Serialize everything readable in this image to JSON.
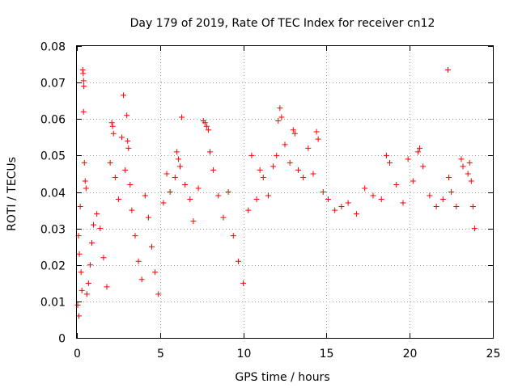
{
  "chart_data": {
    "type": "scatter",
    "title": "Day 179 of 2019, Rate Of TEC Index for receiver cn12",
    "xlabel": "GPS time / hours",
    "ylabel": "ROTI / TECUs",
    "xlim": [
      0,
      25
    ],
    "ylim": [
      0,
      0.08
    ],
    "xticks": [
      0,
      5,
      10,
      15,
      20,
      25
    ],
    "xtick_labels": [
      "0",
      "5",
      "10",
      "15",
      "20",
      "25"
    ],
    "yticks": [
      0,
      0.01,
      0.02,
      0.03,
      0.04,
      0.05,
      0.06,
      0.07,
      0.08
    ],
    "ytick_labels": [
      "0",
      "0.01",
      "0.02",
      "0.03",
      "0.04",
      "0.05",
      "0.06",
      "0.07",
      "0.08"
    ],
    "grid": true,
    "marker": "+",
    "series_color": "#ff0000",
    "series": [
      {
        "name": "ROTI",
        "points": [
          [
            0.35,
            0.0735
          ],
          [
            0.38,
            0.0725
          ],
          [
            0.4,
            0.0705
          ],
          [
            0.42,
            0.069
          ],
          [
            0.4,
            0.062
          ],
          [
            0.45,
            0.048
          ],
          [
            0.5,
            0.043
          ],
          [
            0.55,
            0.041
          ],
          [
            0.2,
            0.036
          ],
          [
            0.1,
            0.028
          ],
          [
            0.15,
            0.023
          ],
          [
            0.25,
            0.018
          ],
          [
            0.3,
            0.013
          ],
          [
            0.05,
            0.009
          ],
          [
            0.12,
            0.006
          ],
          [
            0.6,
            0.012
          ],
          [
            0.7,
            0.015
          ],
          [
            0.8,
            0.02
          ],
          [
            0.9,
            0.026
          ],
          [
            1.0,
            0.031
          ],
          [
            1.2,
            0.034
          ],
          [
            1.4,
            0.03
          ],
          [
            1.6,
            0.022
          ],
          [
            1.8,
            0.014
          ],
          [
            2.0,
            0.048
          ],
          [
            2.1,
            0.059
          ],
          [
            2.15,
            0.058
          ],
          [
            2.2,
            0.056
          ],
          [
            2.3,
            0.044
          ],
          [
            2.5,
            0.038
          ],
          [
            2.7,
            0.055
          ],
          [
            2.8,
            0.0665
          ],
          [
            2.9,
            0.046
          ],
          [
            3.0,
            0.061
          ],
          [
            3.05,
            0.054
          ],
          [
            3.1,
            0.052
          ],
          [
            3.2,
            0.042
          ],
          [
            3.3,
            0.035
          ],
          [
            3.5,
            0.028
          ],
          [
            3.7,
            0.021
          ],
          [
            3.9,
            0.016
          ],
          [
            4.1,
            0.039
          ],
          [
            4.3,
            0.033
          ],
          [
            4.5,
            0.025
          ],
          [
            4.7,
            0.018
          ],
          [
            4.9,
            0.012
          ],
          [
            5.2,
            0.037
          ],
          [
            5.4,
            0.045
          ],
          [
            5.6,
            0.04
          ],
          [
            5.9,
            0.044
          ],
          [
            6.0,
            0.051
          ],
          [
            6.1,
            0.049
          ],
          [
            6.2,
            0.047
          ],
          [
            6.3,
            0.0605
          ],
          [
            6.5,
            0.042
          ],
          [
            6.8,
            0.038
          ],
          [
            7.0,
            0.032
          ],
          [
            7.3,
            0.041
          ],
          [
            7.6,
            0.0595
          ],
          [
            7.7,
            0.059
          ],
          [
            7.8,
            0.058
          ],
          [
            7.9,
            0.057
          ],
          [
            8.0,
            0.051
          ],
          [
            8.2,
            0.046
          ],
          [
            8.5,
            0.039
          ],
          [
            8.8,
            0.033
          ],
          [
            9.1,
            0.04
          ],
          [
            9.4,
            0.028
          ],
          [
            9.7,
            0.021
          ],
          [
            10.0,
            0.015
          ],
          [
            10.3,
            0.035
          ],
          [
            10.5,
            0.05
          ],
          [
            10.8,
            0.038
          ],
          [
            11.0,
            0.046
          ],
          [
            11.2,
            0.044
          ],
          [
            11.5,
            0.039
          ],
          [
            11.8,
            0.047
          ],
          [
            12.0,
            0.05
          ],
          [
            12.1,
            0.0595
          ],
          [
            12.2,
            0.063
          ],
          [
            12.3,
            0.0605
          ],
          [
            12.5,
            0.053
          ],
          [
            12.8,
            0.048
          ],
          [
            13.0,
            0.057
          ],
          [
            13.1,
            0.056
          ],
          [
            13.3,
            0.046
          ],
          [
            13.6,
            0.044
          ],
          [
            13.9,
            0.052
          ],
          [
            14.2,
            0.045
          ],
          [
            14.4,
            0.0565
          ],
          [
            14.5,
            0.0545
          ],
          [
            14.8,
            0.04
          ],
          [
            15.1,
            0.038
          ],
          [
            15.5,
            0.035
          ],
          [
            15.9,
            0.036
          ],
          [
            16.3,
            0.037
          ],
          [
            16.8,
            0.034
          ],
          [
            17.3,
            0.041
          ],
          [
            17.8,
            0.039
          ],
          [
            18.3,
            0.038
          ],
          [
            18.6,
            0.05
          ],
          [
            18.8,
            0.048
          ],
          [
            19.2,
            0.042
          ],
          [
            19.6,
            0.037
          ],
          [
            19.9,
            0.049
          ],
          [
            20.2,
            0.043
          ],
          [
            20.5,
            0.051
          ],
          [
            20.6,
            0.052
          ],
          [
            20.8,
            0.047
          ],
          [
            21.2,
            0.039
          ],
          [
            21.6,
            0.036
          ],
          [
            22.0,
            0.038
          ],
          [
            22.3,
            0.0735
          ],
          [
            22.35,
            0.044
          ],
          [
            22.5,
            0.04
          ],
          [
            22.8,
            0.036
          ],
          [
            23.1,
            0.049
          ],
          [
            23.2,
            0.047
          ],
          [
            23.5,
            0.045
          ],
          [
            23.6,
            0.048
          ],
          [
            23.7,
            0.043
          ],
          [
            23.8,
            0.036
          ],
          [
            23.9,
            0.03
          ]
        ]
      }
    ]
  }
}
